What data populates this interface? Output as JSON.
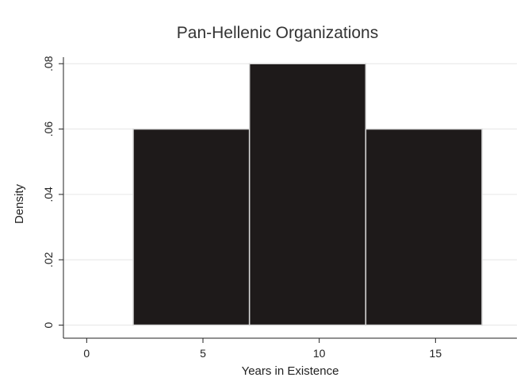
{
  "chart_data": {
    "type": "bar",
    "title": "Pan-Hellenic Organizations",
    "xlabel": "Years in Existence",
    "ylabel": "Density",
    "bins": [
      {
        "start": 2,
        "end": 7,
        "value": 0.06
      },
      {
        "start": 7,
        "end": 12,
        "value": 0.08
      },
      {
        "start": 12,
        "end": 17,
        "value": 0.06
      }
    ],
    "xlim": [
      -1,
      18.5
    ],
    "ylim": [
      -0.004,
      0.082
    ],
    "x_ticks": [
      0,
      5,
      10,
      15
    ],
    "x_tick_labels": [
      "0",
      "5",
      "10",
      "15"
    ],
    "y_ticks": [
      0,
      0.02,
      0.04,
      0.06,
      0.08
    ],
    "y_tick_labels": [
      "0",
      ".02",
      ".04",
      ".06",
      ".08"
    ],
    "grid": true,
    "bar_color": "#1e1a1a",
    "bar_edge_color": "#d9d9d9"
  }
}
